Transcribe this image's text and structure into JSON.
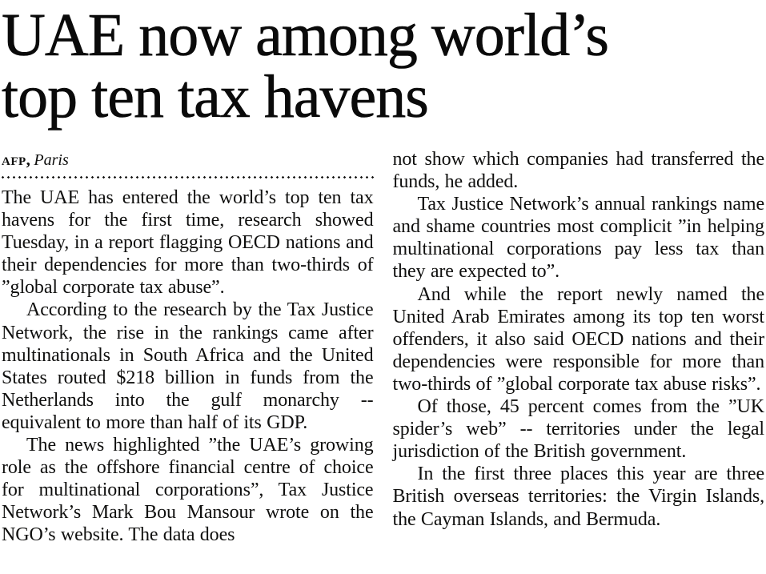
{
  "article": {
    "headline": {
      "line1": "UAE now among world’s",
      "line2": "top ten tax havens"
    },
    "byline": {
      "agency": "AFP,",
      "location": "Paris"
    },
    "columns": {
      "left": {
        "paragraphs": [
          "The UAE has entered the world’s top ten tax havens for the first time, research showed Tuesday, in a report flagging OECD nations and their dependencies for more than two-thirds of ”global corporate tax abuse”.",
          "According to the research by the Tax Justice Network, the rise in the rankings came after multinationals in South Africa and the United States routed $218 billion in funds from the Netherlands into the gulf monarchy -- equivalent to more than half of its GDP.",
          "The news highlighted ”the UAE’s growing role as the offshore financial centre of choice for multinational corporations”, Tax Justice Network’s Mark Bou Mansour wrote on the NGO’s website. The data does"
        ]
      },
      "right": {
        "paragraphs": [
          "not show which companies had transferred the funds, he added.",
          "Tax Justice Network’s annual rankings name and shame countries most complicit ”in helping multinational corporations pay less tax than they are expected to”.",
          "And while the report newly named the United Arab Emirates among its top ten worst offenders, it also said OECD nations and their dependencies were responsible for more than two-thirds of ”global corporate tax abuse risks”.",
          "Of those, 45 percent comes from the ”UK spider’s web” -- territories under the legal jurisdiction of the British government.",
          "In the first three places this year are three British overseas territories: the Virgin Islands, the Cayman Islands, and Bermuda."
        ]
      }
    }
  },
  "colors": {
    "text": "#0f0f0e",
    "background": "#ffffff"
  }
}
